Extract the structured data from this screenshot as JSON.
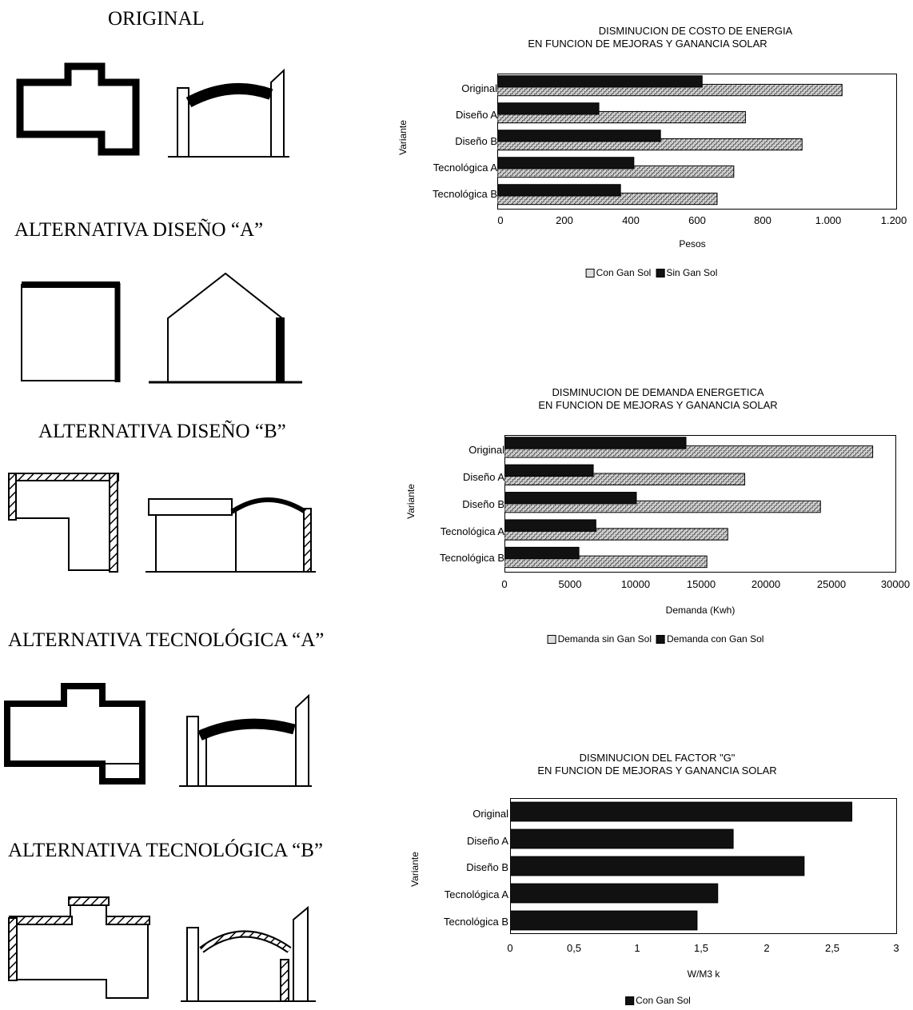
{
  "variants": {
    "original": "ORIGINAL",
    "diseno_a": "ALTERNATIVA DISEÑO “A”",
    "diseno_b": "ALTERNATIVA DISEÑO “B”",
    "tecno_a": "ALTERNATIVA TECNOLÓGICA “A”",
    "tecno_b": "ALTERNATIVA TECNOLÓGICA “B”"
  },
  "chart_data": [
    {
      "type": "bar",
      "orientation": "horizontal",
      "title": "DISMINUCION DE COSTO DE ENERGIA",
      "subtitle": "EN FUNCION DE MEJORAS Y GANANCIA SOLAR",
      "xlabel": "Pesos",
      "ylabel": "Variante",
      "categories": [
        "Original",
        "Diseño A",
        "Diseño B",
        "Tecnológica A",
        "Tecnológica B"
      ],
      "xticks": [
        "0",
        "200",
        "400",
        "600",
        "800",
        "1.000",
        "1.200"
      ],
      "xlim": [
        0,
        1200
      ],
      "series": [
        {
          "name": "Con Gan Sol",
          "pattern": "light",
          "values": [
            1035,
            745,
            915,
            710,
            660
          ]
        },
        {
          "name": "Sin Gan Sol",
          "pattern": "dark",
          "values": [
            615,
            305,
            490,
            410,
            370
          ]
        }
      ],
      "legend": [
        "Con Gan Sol",
        "Sin Gan Sol"
      ],
      "legend_position": "bottom"
    },
    {
      "type": "bar",
      "orientation": "horizontal",
      "title": "DISMINUCION DE DEMANDA ENERGETICA",
      "subtitle": "EN FUNCION DE MEJORAS Y GANANCIA SOLAR",
      "xlabel": "Demanda (Kwh)",
      "ylabel": "Variante",
      "categories": [
        "Original",
        "Diseño A",
        "Diseño B",
        "Tecnológica A",
        "Tecnológica B"
      ],
      "xticks": [
        "0",
        "5000",
        "10000",
        "15000",
        "20000",
        "25000",
        "30000"
      ],
      "xlim": [
        0,
        30000
      ],
      "series": [
        {
          "name": "Demanda sin Gan Sol",
          "pattern": "light",
          "values": [
            28200,
            18400,
            24200,
            17100,
            15500
          ]
        },
        {
          "name": "Demanda con Gan Sol",
          "pattern": "dark",
          "values": [
            13900,
            6800,
            10100,
            7000,
            5700
          ]
        }
      ],
      "legend": [
        "Demanda sin Gan Sol",
        "Demanda con Gan Sol"
      ],
      "legend_position": "bottom"
    },
    {
      "type": "bar",
      "orientation": "horizontal",
      "title": "DISMINUCION DEL FACTOR \"G\"",
      "subtitle": "EN FUNCION DE MEJORAS Y GANANCIA SOLAR",
      "xlabel": "W/M3 k",
      "ylabel": "Variante",
      "categories": [
        "Original",
        "Diseño A",
        "Diseño B",
        "Tecnológica A",
        "Tecnológica B"
      ],
      "xticks": [
        "0",
        "0,5",
        "1",
        "1,5",
        "2",
        "2,5",
        "3"
      ],
      "xlim": [
        0,
        3
      ],
      "series": [
        {
          "name": "Con Gan Sol",
          "pattern": "dark",
          "values": [
            2.65,
            1.73,
            2.28,
            1.61,
            1.45
          ]
        }
      ],
      "legend": [
        "Con Gan Sol"
      ],
      "legend_position": "bottom"
    }
  ]
}
